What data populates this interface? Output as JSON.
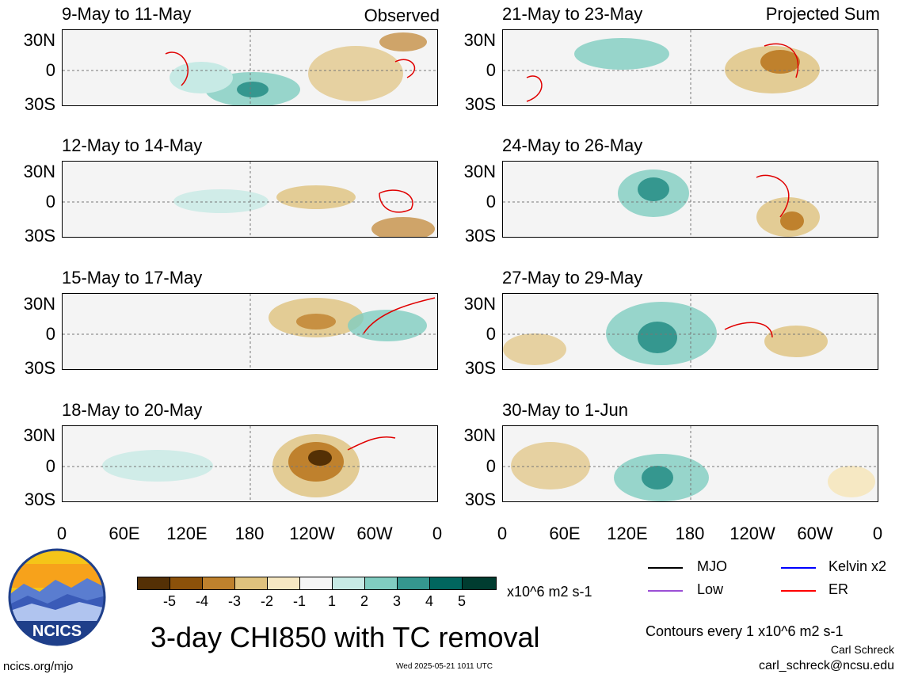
{
  "panels": [
    {
      "title": "9-May to 11-May",
      "tag": "Observed"
    },
    {
      "title": "12-May to 14-May",
      "tag": ""
    },
    {
      "title": "15-May to 17-May",
      "tag": ""
    },
    {
      "title": "18-May to 20-May",
      "tag": ""
    },
    {
      "title": "21-May to 23-May",
      "tag": "Projected Sum"
    },
    {
      "title": "24-May to 26-May",
      "tag": ""
    },
    {
      "title": "27-May to 29-May",
      "tag": ""
    },
    {
      "title": "30-May to 1-Jun",
      "tag": ""
    }
  ],
  "lat_labels": [
    "30N",
    "0",
    "30S"
  ],
  "lon_labels": [
    "0",
    "60E",
    "120E",
    "180",
    "120W",
    "60W",
    "0"
  ],
  "colorbar": {
    "colors": [
      "#543005",
      "#8c510a",
      "#bf812d",
      "#dfc27d",
      "#f6e8c3",
      "#f5f5f5",
      "#c7eae5",
      "#80cdc1",
      "#35978f",
      "#01665e",
      "#003c30"
    ],
    "labels": [
      "-5",
      "-4",
      "-3",
      "-2",
      "-1",
      "1",
      "2",
      "3",
      "4",
      "5"
    ],
    "units": "x10^6 m2 s-1"
  },
  "title": "3-day CHI850 with TC removal",
  "legend": [
    {
      "label": "MJO",
      "color": "#000000"
    },
    {
      "label": "Kelvin x2",
      "color": "#0000ff"
    },
    {
      "label": "Low",
      "color": "#9b4fd6"
    },
    {
      "label": "ER",
      "color": "#ff0000"
    }
  ],
  "contour_note": "Contours every 1 x10^6 m2 s-1",
  "author": "Carl Schreck",
  "email": "carl_schreck@ncsu.edu",
  "website": "ncics.org/mjo",
  "timestamp": "Wed 2025-05-21 1011 UTC",
  "logo_text": "NCICS"
}
